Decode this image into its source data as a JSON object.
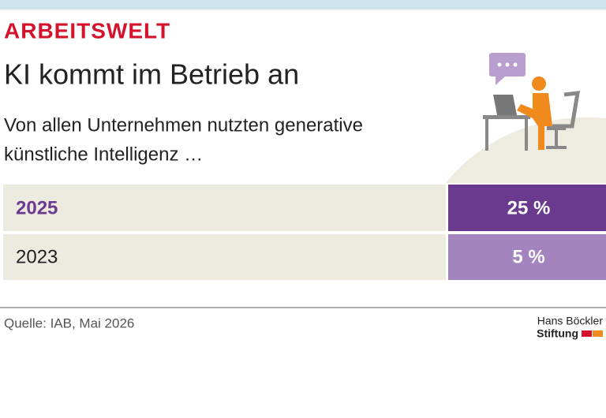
{
  "header": {
    "kicker": "ARBEITSWELT",
    "title": "KI kommt im Betrieb an",
    "subtitle_lines": [
      "Von allen Unternehmen nutzten generative",
      "künstliche Intelligenz …"
    ]
  },
  "table": {
    "rows": [
      [
        "2025",
        "25 %"
      ],
      [
        "2023",
        "5 %"
      ]
    ]
  },
  "footer": {
    "source": "Quelle: IAB, Mai 2026",
    "logo_lines": [
      "Hans Böckler",
      "Stiftung"
    ]
  }
}
